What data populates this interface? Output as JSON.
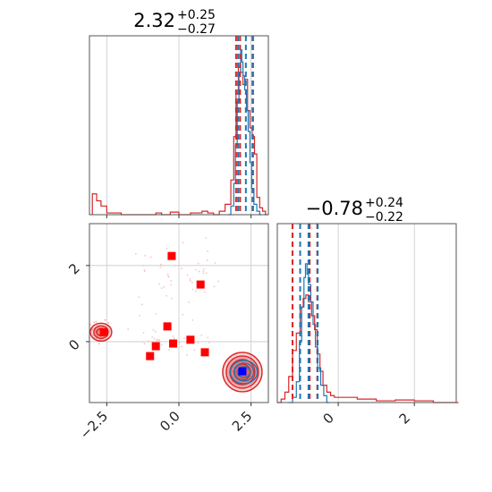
{
  "chart_data": [
    {
      "type": "histogram",
      "panel": "top-left",
      "parameter_index": 0,
      "title": {
        "median": "2.32",
        "plus": "+0.25",
        "minus": "−0.27"
      },
      "xlim": [
        -3.1,
        3.1
      ],
      "grid": true,
      "x_gridlines": [
        -2.5,
        0.0,
        2.5
      ],
      "blue_quantiles": [
        2.05,
        2.32,
        2.57
      ],
      "red_quantiles": [
        1.98,
        2.12,
        2.55
      ],
      "series": [
        {
          "color": "#d62728",
          "bins": [
            [
              -3.0,
              0.12
            ],
            [
              -2.85,
              0.08
            ],
            [
              -2.7,
              0.05
            ],
            [
              -2.5,
              0.01
            ],
            [
              -2.0,
              0.0
            ],
            [
              -1.5,
              0.0
            ],
            [
              -0.8,
              0.01
            ],
            [
              -0.6,
              0.0
            ],
            [
              -0.3,
              0.015
            ],
            [
              0.0,
              0.0
            ],
            [
              0.4,
              0.01
            ],
            [
              0.8,
              0.02
            ],
            [
              1.0,
              0.01
            ],
            [
              1.2,
              0.0
            ],
            [
              1.4,
              0.02
            ],
            [
              1.6,
              0.06
            ],
            [
              1.8,
              0.2
            ],
            [
              1.9,
              0.45
            ],
            [
              1.98,
              0.7
            ],
            [
              2.06,
              0.85
            ],
            [
              2.14,
              0.82
            ],
            [
              2.22,
              0.75
            ],
            [
              2.3,
              0.78
            ],
            [
              2.38,
              0.6
            ],
            [
              2.46,
              0.5
            ],
            [
              2.54,
              0.45
            ],
            [
              2.62,
              0.35
            ],
            [
              2.7,
              0.1
            ],
            [
              2.8,
              0.04
            ],
            [
              2.9,
              0.02
            ],
            [
              3.0,
              0.0
            ]
          ]
        },
        {
          "color": "#1f77b4",
          "bins": [
            [
              1.7,
              0.0
            ],
            [
              1.8,
              0.05
            ],
            [
              1.9,
              0.18
            ],
            [
              1.96,
              0.4
            ],
            [
              2.02,
              0.65
            ],
            [
              2.08,
              0.82
            ],
            [
              2.14,
              0.95
            ],
            [
              2.18,
              0.88
            ],
            [
              2.22,
              0.8
            ],
            [
              2.28,
              0.72
            ],
            [
              2.34,
              0.6
            ],
            [
              2.4,
              0.48
            ],
            [
              2.46,
              0.3
            ],
            [
              2.52,
              0.15
            ],
            [
              2.6,
              0.06
            ],
            [
              2.7,
              0.02
            ],
            [
              2.8,
              0.0
            ]
          ]
        }
      ]
    },
    {
      "type": "histogram",
      "panel": "bottom-right",
      "parameter_index": 1,
      "title": {
        "median": "−0.78",
        "plus": "+0.24",
        "minus": "−0.22"
      },
      "xlim": [
        -1.6,
        3.1
      ],
      "grid": true,
      "x_gridlines": [
        0,
        2
      ],
      "x_ticks": [
        0,
        2
      ],
      "x_tick_labels": [
        "0",
        "2"
      ],
      "blue_quantiles": [
        -1.0,
        -0.78,
        -0.54
      ],
      "red_quantiles": [
        -1.2,
        -0.75,
        -0.55
      ],
      "series": [
        {
          "color": "#d62728",
          "bins": [
            [
              -1.6,
              0.0
            ],
            [
              -1.5,
              0.02
            ],
            [
              -1.4,
              0.06
            ],
            [
              -1.3,
              0.15
            ],
            [
              -1.2,
              0.3
            ],
            [
              -1.1,
              0.4
            ],
            [
              -1.0,
              0.55
            ],
            [
              -0.92,
              0.6
            ],
            [
              -0.85,
              0.62
            ],
            [
              -0.78,
              0.58
            ],
            [
              -0.7,
              0.5
            ],
            [
              -0.62,
              0.42
            ],
            [
              -0.55,
              0.28
            ],
            [
              -0.48,
              0.18
            ],
            [
              -0.4,
              0.1
            ],
            [
              -0.3,
              0.06
            ],
            [
              -0.2,
              0.04
            ],
            [
              -0.1,
              0.03
            ],
            [
              0.2,
              0.03
            ],
            [
              0.5,
              0.02
            ],
            [
              1.0,
              0.01
            ],
            [
              1.5,
              0.015
            ],
            [
              2.0,
              0.01
            ],
            [
              2.5,
              0.0
            ],
            [
              3.1,
              0.0
            ]
          ]
        },
        {
          "color": "#1f77b4",
          "bins": [
            [
              -1.3,
              0.0
            ],
            [
              -1.2,
              0.03
            ],
            [
              -1.1,
              0.12
            ],
            [
              -1.02,
              0.35
            ],
            [
              -0.96,
              0.55
            ],
            [
              -0.9,
              0.72
            ],
            [
              -0.86,
              0.8
            ],
            [
              -0.82,
              0.74
            ],
            [
              -0.78,
              0.68
            ],
            [
              -0.72,
              0.58
            ],
            [
              -0.66,
              0.45
            ],
            [
              -0.6,
              0.32
            ],
            [
              -0.54,
              0.2
            ],
            [
              -0.46,
              0.1
            ],
            [
              -0.38,
              0.04
            ],
            [
              -0.3,
              0.0
            ]
          ]
        }
      ]
    },
    {
      "type": "scatter",
      "panel": "bottom-left",
      "xlim": [
        -3.1,
        3.1
      ],
      "ylim": [
        -1.6,
        3.1
      ],
      "grid": true,
      "x_ticks": [
        -2.5,
        0.0,
        2.5
      ],
      "x_tick_labels": [
        "−2.5",
        "0.0",
        "2.5"
      ],
      "y_ticks": [
        0,
        2
      ],
      "y_tick_labels": [
        "0",
        "2"
      ],
      "red_squares": [
        [
          -2.6,
          0.25
        ],
        [
          -0.25,
          2.25
        ],
        [
          0.75,
          1.5
        ],
        [
          -0.4,
          0.4
        ],
        [
          -0.2,
          -0.05
        ],
        [
          -0.8,
          -0.12
        ],
        [
          -1.0,
          -0.38
        ],
        [
          0.4,
          0.05
        ],
        [
          0.9,
          -0.28
        ]
      ],
      "blue_square": [
        2.2,
        -0.78
      ],
      "red_contour_centers": [
        [
          -2.7,
          0.25
        ],
        [
          2.2,
          -0.8
        ]
      ],
      "blue_contour_center": [
        2.25,
        -0.8
      ]
    }
  ]
}
